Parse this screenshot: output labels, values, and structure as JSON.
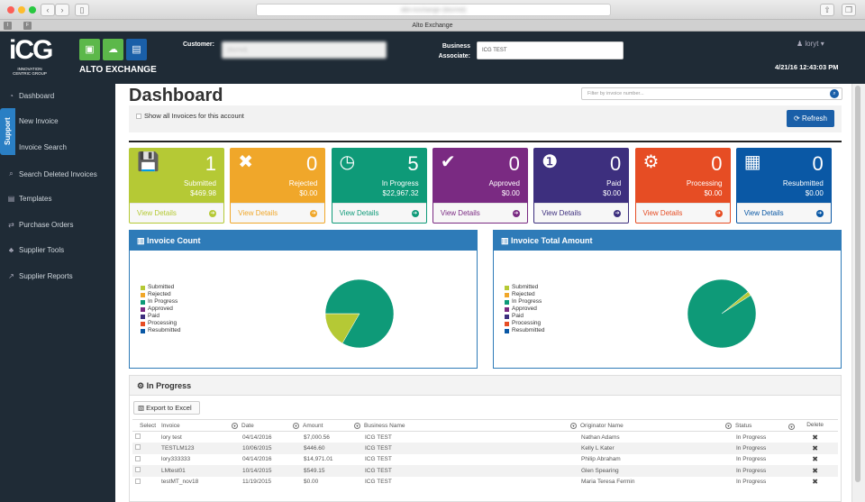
{
  "browser": {
    "url": "alto-exchange (blurred)",
    "tab_title": "Alto Exchange",
    "tab_icons": [
      "I",
      "F"
    ]
  },
  "header": {
    "logo_main": "iCG",
    "logo_sub1": "INNOVATION",
    "logo_sub2": "CENTRIC GROUP",
    "brand": "ALTO EXCHANGE",
    "customer_label": "Customer:",
    "customer_value": "(blurred)",
    "ba_label1": "Business",
    "ba_label2": "Associate:",
    "ba_value": "ICG TEST",
    "user": "loryt",
    "datetime": "4/21/16 12:43:03 PM"
  },
  "sidebar": {
    "support": "Support",
    "items": [
      {
        "label": "Dashboard",
        "icon": "dashboard-icon",
        "glyph": "◔"
      },
      {
        "label": "New Invoice",
        "icon": "new-invoice-icon",
        "glyph": "✎"
      },
      {
        "label": "Invoice Search",
        "icon": "search-icon",
        "glyph": "⌕"
      },
      {
        "label": "Search Deleted Invoices",
        "icon": "search-icon",
        "glyph": "⌕"
      },
      {
        "label": "Templates",
        "icon": "templates-icon",
        "glyph": "▤"
      },
      {
        "label": "Purchase Orders",
        "icon": "exchange-icon",
        "glyph": "⇄"
      },
      {
        "label": "Supplier Tools",
        "icon": "tools-icon",
        "glyph": "♣"
      },
      {
        "label": "Supplier Reports",
        "icon": "chart-icon",
        "glyph": "↗"
      }
    ]
  },
  "main": {
    "title": "Dashboard",
    "filter_placeholder": "Filter by invoice number...",
    "show_all": "Show all Invoices for this account",
    "refresh": "Refresh"
  },
  "cards": [
    {
      "icon": "save-icon",
      "glyph": "💾",
      "count": "1",
      "name": "Submitted",
      "amount": "$469.98",
      "link": "View Details",
      "color": "#b5c935"
    },
    {
      "icon": "x-icon",
      "glyph": "✖",
      "count": "0",
      "name": "Rejected",
      "amount": "$0.00",
      "link": "View Details",
      "color": "#f0a72a"
    },
    {
      "icon": "clock-icon",
      "glyph": "◷",
      "count": "5",
      "name": "In Progress",
      "amount": "$22,967.32",
      "link": "View Details",
      "color": "#0e9a78"
    },
    {
      "icon": "check-icon",
      "glyph": "✔",
      "count": "0",
      "name": "Approved",
      "amount": "$0.00",
      "link": "View Details",
      "color": "#7a2a82"
    },
    {
      "icon": "money-icon",
      "glyph": "❶",
      "count": "0",
      "name": "Paid",
      "amount": "$0.00",
      "link": "View Details",
      "color": "#3d2f7e"
    },
    {
      "icon": "gears-icon",
      "glyph": "⚙",
      "count": "0",
      "name": "Processing",
      "amount": "$0.00",
      "link": "View Details",
      "color": "#e64d24"
    },
    {
      "icon": "calculator-icon",
      "glyph": "▦",
      "count": "0",
      "name": "Resubmitted",
      "amount": "$0.00",
      "link": "View Details",
      "color": "#0a58a5"
    }
  ],
  "chart_data": [
    {
      "type": "pie",
      "title": "Invoice Count",
      "categories": [
        "Submitted",
        "Rejected",
        "In Progress",
        "Approved",
        "Paid",
        "Processing",
        "Resubmitted"
      ],
      "values": [
        1,
        0,
        5,
        0,
        0,
        0,
        0
      ],
      "legend": "left"
    },
    {
      "type": "pie",
      "title": "Invoice Total Amount",
      "categories": [
        "Submitted",
        "Rejected",
        "In Progress",
        "Approved",
        "Paid",
        "Processing",
        "Resubmitted"
      ],
      "values": [
        469.98,
        0,
        22967.32,
        0,
        0,
        0,
        0
      ],
      "legend": "left"
    }
  ],
  "inprogress": {
    "title": "In Progress",
    "export": "Export to Excel",
    "columns": [
      "Select",
      "Invoice",
      "Date",
      "Amount",
      "Business Name",
      "Originator Name",
      "Status",
      "Delete"
    ],
    "rows": [
      [
        "lory test",
        "04/14/2016",
        "$7,000.56",
        "ICG TEST",
        "Nathan Adams",
        "In Progress"
      ],
      [
        "TESTLM123",
        "10/06/2015",
        "$446.60",
        "ICG TEST",
        "Kelly L Kater",
        "In Progress"
      ],
      [
        "lory333333",
        "04/14/2016",
        "$14,971.01",
        "ICG TEST",
        "Philip Abraham",
        "In Progress"
      ],
      [
        "LMtest01",
        "10/14/2015",
        "$549.15",
        "ICG TEST",
        "Glen Spearing",
        "In Progress"
      ],
      [
        "testMT_nov18",
        "11/19/2015",
        "$0.00",
        "ICG TEST",
        "Maria Teresa Fermin",
        "In Progress"
      ]
    ]
  }
}
